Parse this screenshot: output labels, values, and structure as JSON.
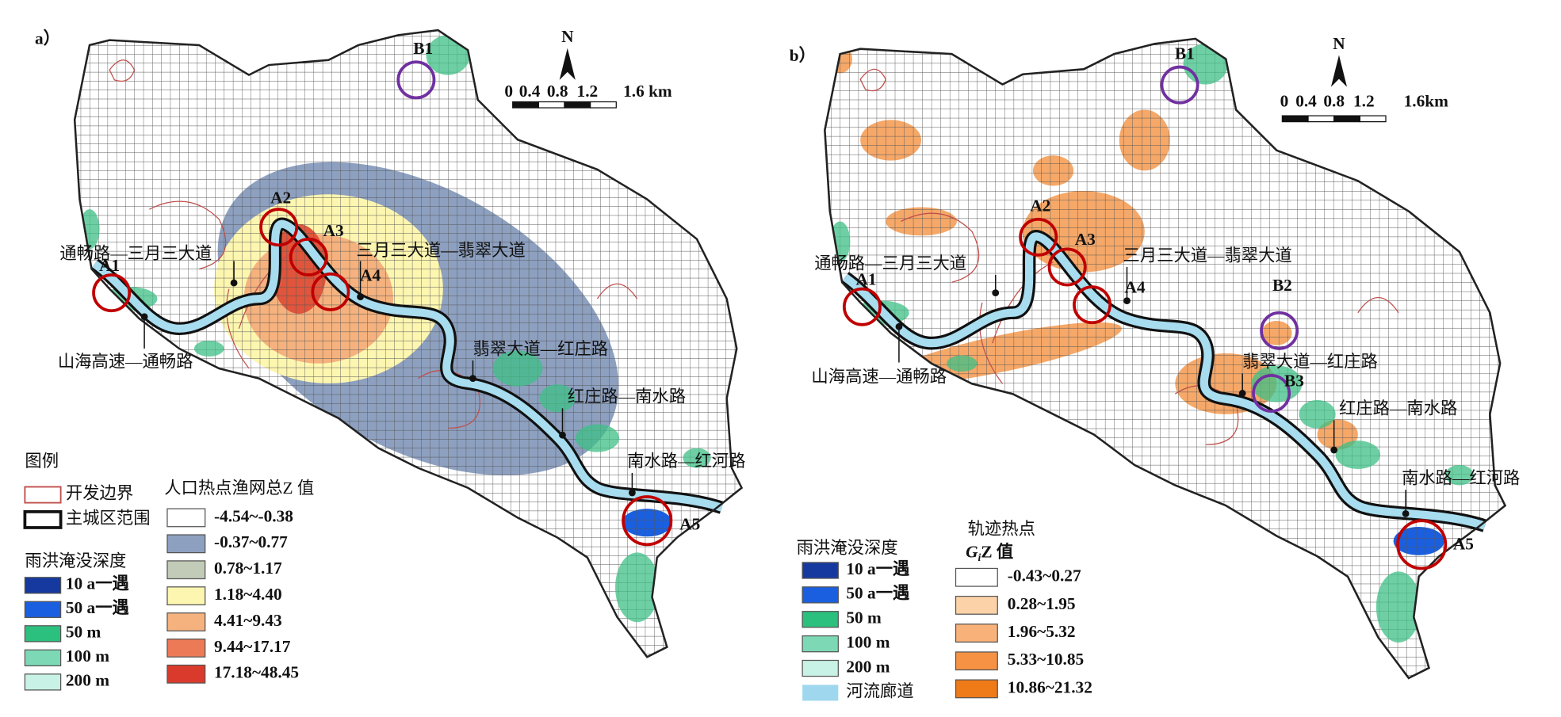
{
  "panels": [
    {
      "label": "a）",
      "north": "N",
      "scale": [
        "0",
        "0.4",
        "0.8",
        "1.2",
        "1.6 km"
      ],
      "sites": [
        "A1",
        "A2",
        "A3",
        "A4",
        "A5",
        "B1"
      ],
      "roads": [
        "通畅路—三月三大道",
        "三月三大道—翡翠大道",
        "山海高速—通畅路",
        "翡翠大道—红庄路",
        "红庄路—南水路",
        "南水路—红河路"
      ],
      "legend": {
        "title": "图例",
        "boundary": [
          "开发边界",
          "主城区范围"
        ],
        "flood_title": "雨洪淹没深度",
        "flood": [
          "10 a一遇",
          "50 a一遇",
          "50 m",
          "100 m",
          "200 m"
        ],
        "hot_title": "人口热点渔网总Z 值",
        "hot": [
          "-4.54~-0.38",
          "-0.37~0.77",
          "0.78~1.17",
          "1.18~4.40",
          "4.41~9.43",
          "9.44~17.17",
          "17.18~48.45"
        ]
      }
    },
    {
      "label": "b）",
      "north": "N",
      "scale": [
        "0",
        "0.4",
        "0.8",
        "1.2",
        "1.6km"
      ],
      "sites": [
        "A1",
        "A2",
        "A3",
        "A4",
        "A5",
        "B1",
        "B2",
        "B3"
      ],
      "roads": [
        "通畅路—三月三大道",
        "三月三大道—翡翠大道",
        "山海高速—通畅路",
        "翡翠大道—红庄路",
        "红庄路—南水路",
        "南水路—红河路"
      ],
      "legend": {
        "flood_title": "雨洪淹没深度",
        "flood": [
          "10 a一遇",
          "50 a一遇",
          "50 m",
          "100 m",
          "200 m",
          "河流廊道"
        ],
        "hot_title": [
          "轨迹热点",
          "G",
          "i",
          "Z 值"
        ],
        "hot": [
          "-0.43~0.27",
          "0.28~1.95",
          "1.96~5.32",
          "5.33~10.85",
          "10.86~21.32"
        ]
      }
    }
  ]
}
